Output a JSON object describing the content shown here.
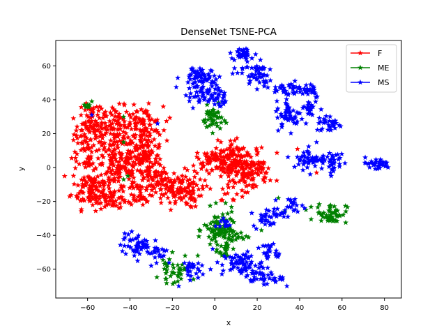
{
  "chart_data": {
    "type": "scatter",
    "title": "DenseNet TSNE-PCA",
    "xlabel": "x",
    "ylabel": "y",
    "xlim": [
      -75,
      88
    ],
    "ylim": [
      -77,
      75
    ],
    "xticks": [
      -60,
      -40,
      -20,
      0,
      20,
      40,
      60,
      80
    ],
    "yticks": [
      -60,
      -40,
      -20,
      0,
      20,
      40,
      60
    ],
    "xtick_labels": [
      "−60",
      "−40",
      "−20",
      "0",
      "20",
      "40",
      "60",
      "80"
    ],
    "ytick_labels": [
      "−60",
      "−40",
      "−20",
      "0",
      "20",
      "40",
      "60"
    ],
    "grid": false,
    "legend": {
      "position": "top-right"
    },
    "series": [
      {
        "name": "F",
        "color": "#ff0000",
        "marker": "star",
        "clusters": [
          {
            "cx": -58,
            "cy": 20,
            "rx": 7,
            "ry": 12,
            "n": 110
          },
          {
            "cx": -62,
            "cy": 3,
            "rx": 4,
            "ry": 4,
            "n": 20
          },
          {
            "cx": -58,
            "cy": -12,
            "rx": 8,
            "ry": 10,
            "n": 110
          },
          {
            "cx": -46,
            "cy": 25,
            "rx": 6,
            "ry": 9,
            "n": 70
          },
          {
            "cx": -45,
            "cy": 0,
            "rx": 9,
            "ry": 12,
            "n": 130
          },
          {
            "cx": -48,
            "cy": -18,
            "rx": 6,
            "ry": 5,
            "n": 45
          },
          {
            "cx": -34,
            "cy": 25,
            "rx": 8,
            "ry": 9,
            "n": 90
          },
          {
            "cx": -33,
            "cy": 5,
            "rx": 7,
            "ry": 14,
            "n": 120
          },
          {
            "cx": -35,
            "cy": -15,
            "rx": 5,
            "ry": 6,
            "n": 40
          },
          {
            "cx": -18,
            "cy": -13,
            "rx": 10,
            "ry": 9,
            "n": 130
          },
          {
            "cx": -26,
            "cy": -8,
            "rx": 4,
            "ry": 5,
            "n": 30
          },
          {
            "cx": 2,
            "cy": 5,
            "rx": 9,
            "ry": 5,
            "n": 70
          },
          {
            "cx": 12,
            "cy": 0,
            "rx": 11,
            "ry": 12,
            "n": 190
          },
          {
            "cx": 18,
            "cy": -2,
            "rx": 4,
            "ry": 6,
            "n": 30
          },
          {
            "cx": -57,
            "cy": 34,
            "rx": 3,
            "ry": 3,
            "n": 10
          }
        ],
        "points": [
          [
            39,
            11
          ],
          [
            48,
            -3
          ],
          [
            -24,
            22
          ],
          [
            -52,
            12
          ],
          [
            -65,
            8
          ]
        ]
      },
      {
        "name": "ME",
        "color": "#008000",
        "marker": "star",
        "clusters": [
          {
            "cx": -1,
            "cy": 29,
            "rx": 4,
            "ry": 6,
            "n": 45
          },
          {
            "cx": 2,
            "cy": -37,
            "rx": 6,
            "ry": 10,
            "n": 80
          },
          {
            "cx": 8,
            "cy": -40,
            "rx": 5,
            "ry": 5,
            "n": 30
          },
          {
            "cx": 5,
            "cy": -48,
            "rx": 3,
            "ry": 4,
            "n": 15
          },
          {
            "cx": -20,
            "cy": -62,
            "rx": 5,
            "ry": 5,
            "n": 35
          },
          {
            "cx": 55,
            "cy": -27,
            "rx": 6,
            "ry": 5,
            "n": 50
          },
          {
            "cx": -60,
            "cy": 37,
            "rx": 2,
            "ry": 2,
            "n": 6
          }
        ],
        "points": [
          [
            -43,
            30
          ],
          [
            -43,
            15
          ],
          [
            -43,
            -7
          ],
          [
            -41,
            -5
          ],
          [
            30,
            -18
          ],
          [
            33,
            -26
          ],
          [
            22,
            -37
          ],
          [
            -20,
            -50
          ],
          [
            -14,
            -52
          ],
          [
            -10,
            -66
          ],
          [
            -8,
            -52
          ],
          [
            43,
            -25
          ],
          [
            -58,
            39
          ]
        ]
      },
      {
        "name": "MS",
        "color": "#0000ff",
        "marker": "star",
        "clusters": [
          {
            "cx": -9,
            "cy": 53,
            "rx": 6,
            "ry": 6,
            "n": 50
          },
          {
            "cx": -5,
            "cy": 44,
            "rx": 6,
            "ry": 8,
            "n": 55
          },
          {
            "cx": 2,
            "cy": 40,
            "rx": 3,
            "ry": 5,
            "n": 20
          },
          {
            "cx": 13,
            "cy": 67,
            "rx": 5,
            "ry": 3,
            "n": 30
          },
          {
            "cx": 18,
            "cy": 59,
            "rx": 6,
            "ry": 4,
            "n": 30
          },
          {
            "cx": 21,
            "cy": 52,
            "rx": 5,
            "ry": 4,
            "n": 25
          },
          {
            "cx": 36,
            "cy": 46,
            "rx": 7,
            "ry": 4,
            "n": 40
          },
          {
            "cx": 45,
            "cy": 46,
            "rx": 4,
            "ry": 4,
            "n": 20
          },
          {
            "cx": 35,
            "cy": 31,
            "rx": 5,
            "ry": 7,
            "n": 45
          },
          {
            "cx": 45,
            "cy": 35,
            "rx": 4,
            "ry": 5,
            "n": 20
          },
          {
            "cx": 54,
            "cy": 26,
            "rx": 5,
            "ry": 4,
            "n": 30
          },
          {
            "cx": 47,
            "cy": 5,
            "rx": 9,
            "ry": 5,
            "n": 60
          },
          {
            "cx": 56,
            "cy": 3,
            "rx": 3,
            "ry": 5,
            "n": 20
          },
          {
            "cx": 76,
            "cy": 2,
            "rx": 6,
            "ry": 3,
            "n": 35
          },
          {
            "cx": 25,
            "cy": -29,
            "rx": 6,
            "ry": 5,
            "n": 35
          },
          {
            "cx": 36,
            "cy": -22,
            "rx": 5,
            "ry": 3,
            "n": 20
          },
          {
            "cx": 27,
            "cy": -50,
            "rx": 4,
            "ry": 5,
            "n": 20
          },
          {
            "cx": 13,
            "cy": -57,
            "rx": 8,
            "ry": 6,
            "n": 70
          },
          {
            "cx": 22,
            "cy": -65,
            "rx": 8,
            "ry": 3,
            "n": 35
          },
          {
            "cx": -37,
            "cy": -46,
            "rx": 6,
            "ry": 6,
            "n": 50
          },
          {
            "cx": -27,
            "cy": -50,
            "rx": 4,
            "ry": 4,
            "n": 20
          },
          {
            "cx": -12,
            "cy": -60,
            "rx": 4,
            "ry": 5,
            "n": 25
          },
          {
            "cx": 4,
            "cy": -33,
            "rx": 3,
            "ry": 3,
            "n": 10
          }
        ],
        "points": [
          [
            45,
            -4
          ],
          [
            -58,
            31
          ],
          [
            -27,
            26
          ],
          [
            -28,
            -43
          ],
          [
            -30,
            -58
          ],
          [
            -24,
            -52
          ],
          [
            -17,
            -70
          ],
          [
            4,
            -30
          ],
          [
            -1,
            -48
          ],
          [
            -2,
            -60
          ],
          [
            43,
            26
          ],
          [
            48,
            15
          ],
          [
            34,
            -70
          ]
        ]
      }
    ]
  }
}
